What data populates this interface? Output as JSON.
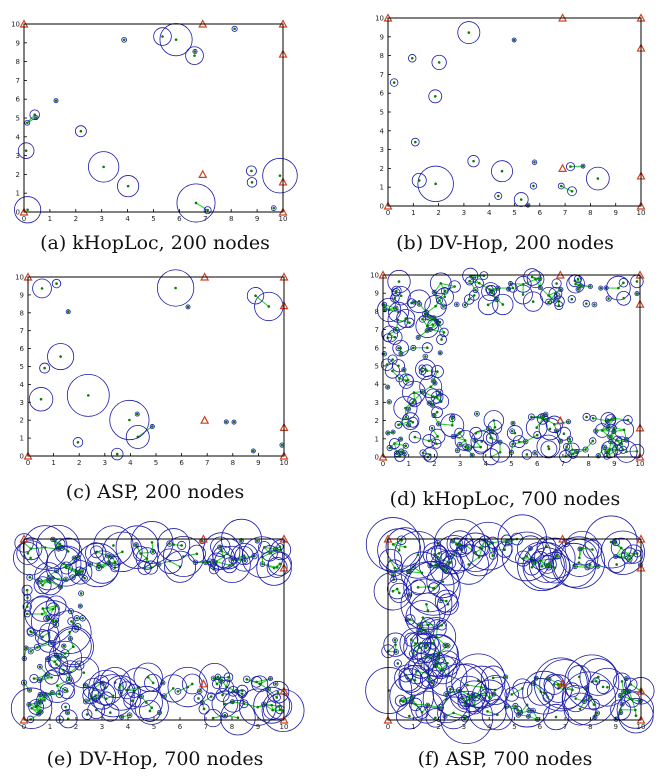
{
  "colors": {
    "circle": "#1a1aa8",
    "link": "#22cc22",
    "node": "#0a7a0a",
    "anchor": "#d04020",
    "frame": "#000000"
  },
  "chart_data": [
    {
      "type": "scatter",
      "caption": "(a) kHopLoc, 200 nodes",
      "nodes": 200,
      "algorithm": "kHopLoc",
      "xlim": [
        0,
        10
      ],
      "ylim": [
        0,
        10
      ],
      "xticks": [
        "0",
        "1",
        "2",
        "3",
        "4",
        "5",
        "6",
        "7",
        "8",
        "9",
        "10"
      ],
      "yticks": [
        "0",
        "1",
        "2",
        "3",
        "4",
        "5",
        "6",
        "7",
        "8",
        "9",
        "10"
      ],
      "density": 0.3,
      "error_scale": 0.6
    },
    {
      "type": "scatter",
      "caption": "(b) DV-Hop, 200 nodes",
      "nodes": 200,
      "algorithm": "DV-Hop",
      "xlim": [
        0,
        10
      ],
      "ylim": [
        0,
        10
      ],
      "xticks": [
        "0",
        "1",
        "2",
        "3",
        "4",
        "5",
        "6",
        "7",
        "8",
        "9",
        "10"
      ],
      "yticks": [
        "0",
        "1",
        "2",
        "3",
        "4",
        "5",
        "6",
        "7",
        "8",
        "9",
        "10"
      ],
      "density": 0.3,
      "error_scale": 0.75
    },
    {
      "type": "scatter",
      "caption": "(c) ASP, 200 nodes",
      "nodes": 200,
      "algorithm": "ASP",
      "xlim": [
        0,
        10
      ],
      "ylim": [
        0,
        10
      ],
      "xticks": [
        "0",
        "1",
        "2",
        "3",
        "4",
        "5",
        "6",
        "7",
        "8",
        "9",
        "10"
      ],
      "yticks": [
        "0",
        "1",
        "2",
        "3",
        "4",
        "5",
        "6",
        "7",
        "8",
        "9",
        "10"
      ],
      "density": 0.3,
      "error_scale": 0.8
    },
    {
      "type": "scatter",
      "caption": "(d) kHopLoc, 700 nodes",
      "nodes": 700,
      "algorithm": "kHopLoc",
      "xlim": [
        0,
        10
      ],
      "ylim": [
        0,
        10
      ],
      "xticks": [
        "0",
        "1",
        "2",
        "3",
        "4",
        "5",
        "6",
        "7",
        "8",
        "9",
        "10"
      ],
      "yticks": [
        "0",
        "1",
        "2",
        "3",
        "4",
        "5",
        "6",
        "7",
        "8",
        "9",
        "10"
      ],
      "density": 1.0,
      "error_scale": 0.35
    },
    {
      "type": "scatter",
      "caption": "(e) DV-Hop, 700 nodes",
      "nodes": 700,
      "algorithm": "DV-Hop",
      "xlim": [
        0,
        10
      ],
      "ylim": [
        0,
        10
      ],
      "xticks": [
        "0",
        "1",
        "2",
        "3",
        "4",
        "5",
        "6",
        "7",
        "8",
        "9",
        "10"
      ],
      "yticks": [],
      "density": 1.0,
      "error_scale": 0.7
    },
    {
      "type": "scatter",
      "caption": "(f) ASP, 700 nodes",
      "nodes": 700,
      "algorithm": "ASP",
      "xlim": [
        0,
        10
      ],
      "ylim": [
        0,
        10
      ],
      "xticks": [
        "0",
        "1",
        "2",
        "3",
        "4",
        "5",
        "6",
        "7",
        "8",
        "9",
        "10"
      ],
      "yticks": [],
      "density": 1.0,
      "error_scale": 0.9
    }
  ]
}
